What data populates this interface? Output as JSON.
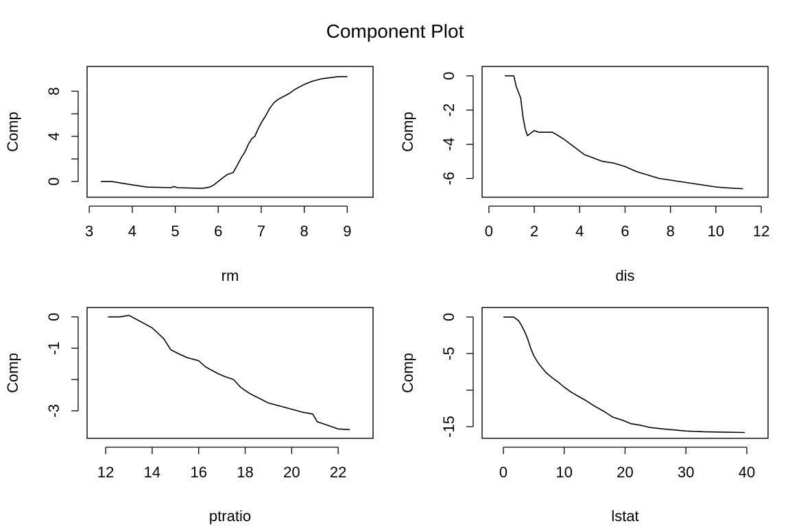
{
  "page": {
    "title": "Component Plot"
  },
  "chart_data": [
    {
      "type": "line",
      "xlabel": "rm",
      "ylabel": "Comp",
      "xlim": [
        2.95,
        9.6
      ],
      "ylim": [
        -1.4,
        10.2
      ],
      "xticks": [
        3,
        4,
        5,
        6,
        7,
        8,
        9
      ],
      "xtick_labels": [
        "3",
        "4",
        "5",
        "6",
        "7",
        "8",
        "9"
      ],
      "yticks": [
        0,
        2,
        4,
        6,
        8
      ],
      "ytick_labels": [
        "0",
        "",
        "4",
        "",
        "8"
      ],
      "grid": false,
      "series": [
        {
          "x": [
            3.27,
            3.5,
            3.6,
            4.0,
            4.35,
            4.9,
            4.97,
            5.05,
            5.5,
            5.65,
            5.8,
            5.9,
            6.0,
            6.1,
            6.2,
            6.35,
            6.45,
            6.55,
            6.62,
            6.7,
            6.78,
            6.85,
            6.92,
            7.0,
            7.1,
            7.2,
            7.3,
            7.4,
            7.5,
            7.65,
            7.8,
            8.0,
            8.2,
            8.4,
            8.8,
            9.0
          ],
          "y": [
            0.0,
            0.0,
            -0.05,
            -0.3,
            -0.5,
            -0.55,
            -0.45,
            -0.55,
            -0.6,
            -0.6,
            -0.5,
            -0.3,
            0.0,
            0.3,
            0.6,
            0.8,
            1.5,
            2.2,
            2.6,
            3.3,
            3.8,
            4.0,
            4.6,
            5.2,
            5.8,
            6.5,
            7.0,
            7.3,
            7.5,
            7.8,
            8.2,
            8.6,
            8.9,
            9.1,
            9.3,
            9.3
          ]
        }
      ]
    },
    {
      "type": "line",
      "xlabel": "dis",
      "ylabel": "Comp",
      "xlim": [
        -0.3,
        12.3
      ],
      "ylim": [
        -7.1,
        0.55
      ],
      "xticks": [
        0,
        2,
        4,
        6,
        8,
        10,
        12
      ],
      "xtick_labels": [
        "0",
        "2",
        "4",
        "6",
        "8",
        "10",
        "12"
      ],
      "yticks": [
        0,
        -2,
        -4,
        -6
      ],
      "ytick_labels": [
        "0",
        "-2",
        "-4",
        "-6"
      ],
      "grid": false,
      "series": [
        {
          "x": [
            0.7,
            1.1,
            1.2,
            1.4,
            1.5,
            1.6,
            1.7,
            1.8,
            2.0,
            2.2,
            2.5,
            2.8,
            3.0,
            3.3,
            3.6,
            3.9,
            4.2,
            4.6,
            5.0,
            5.5,
            6.0,
            6.5,
            7.0,
            7.5,
            8.0,
            8.5,
            9.0,
            9.5,
            10.0,
            10.5,
            11.2
          ],
          "y": [
            0.0,
            0.0,
            -0.6,
            -1.3,
            -2.4,
            -3.1,
            -3.5,
            -3.4,
            -3.2,
            -3.3,
            -3.3,
            -3.3,
            -3.45,
            -3.7,
            -4.0,
            -4.3,
            -4.6,
            -4.8,
            -5.0,
            -5.1,
            -5.3,
            -5.6,
            -5.8,
            -6.0,
            -6.1,
            -6.2,
            -6.3,
            -6.4,
            -6.5,
            -6.55,
            -6.6
          ]
        }
      ]
    },
    {
      "type": "line",
      "xlabel": "ptratio",
      "ylabel": "Comp",
      "xlim": [
        11.2,
        23.5
      ],
      "ylim": [
        -3.88,
        0.3
      ],
      "xticks": [
        12,
        14,
        16,
        18,
        20,
        22
      ],
      "xtick_labels": [
        "12",
        "14",
        "16",
        "18",
        "20",
        "22"
      ],
      "yticks": [
        0,
        -1,
        -2,
        -3
      ],
      "ytick_labels": [
        "0",
        "-1",
        "",
        "-3"
      ],
      "grid": false,
      "series": [
        {
          "x": [
            12.1,
            12.6,
            13.0,
            13.5,
            14.0,
            14.5,
            14.8,
            15.2,
            15.5,
            16.0,
            16.3,
            16.8,
            17.1,
            17.5,
            17.8,
            18.2,
            18.6,
            19.0,
            19.5,
            20.0,
            20.5,
            20.9,
            21.1,
            21.5,
            22.0,
            22.5
          ],
          "y": [
            0.0,
            0.0,
            0.05,
            -0.15,
            -0.35,
            -0.7,
            -1.05,
            -1.2,
            -1.3,
            -1.4,
            -1.6,
            -1.8,
            -1.9,
            -2.0,
            -2.25,
            -2.45,
            -2.6,
            -2.75,
            -2.85,
            -2.95,
            -3.05,
            -3.1,
            -3.35,
            -3.45,
            -3.58,
            -3.6
          ]
        }
      ]
    },
    {
      "type": "line",
      "xlabel": "lstat",
      "ylabel": "Comp",
      "xlim": [
        -3.5,
        43.5
      ],
      "ylim": [
        -16.6,
        1.3
      ],
      "xticks": [
        0,
        10,
        20,
        30,
        40
      ],
      "xtick_labels": [
        "0",
        "10",
        "20",
        "30",
        "40"
      ],
      "yticks": [
        0,
        -5,
        -10,
        -15
      ],
      "ytick_labels": [
        "0",
        "-5",
        "",
        "-15"
      ],
      "grid": false,
      "series": [
        {
          "x": [
            0.0,
            1.7,
            2.5,
            3.0,
            3.5,
            4.0,
            4.5,
            5.0,
            5.5,
            6.0,
            7.0,
            8.0,
            9.0,
            10.0,
            11.0,
            12.0,
            13.5,
            15.0,
            16.5,
            18.0,
            19.5,
            21.0,
            22.5,
            24.0,
            26.0,
            28.0,
            30.0,
            33.0,
            36.0,
            39.7
          ],
          "y": [
            0.0,
            0.0,
            -0.5,
            -1.2,
            -2.0,
            -3.0,
            -4.3,
            -5.3,
            -6.0,
            -6.6,
            -7.6,
            -8.3,
            -8.9,
            -9.6,
            -10.2,
            -10.7,
            -11.4,
            -12.2,
            -12.9,
            -13.7,
            -14.1,
            -14.6,
            -14.8,
            -15.1,
            -15.3,
            -15.45,
            -15.6,
            -15.7,
            -15.75,
            -15.8
          ]
        }
      ]
    }
  ]
}
